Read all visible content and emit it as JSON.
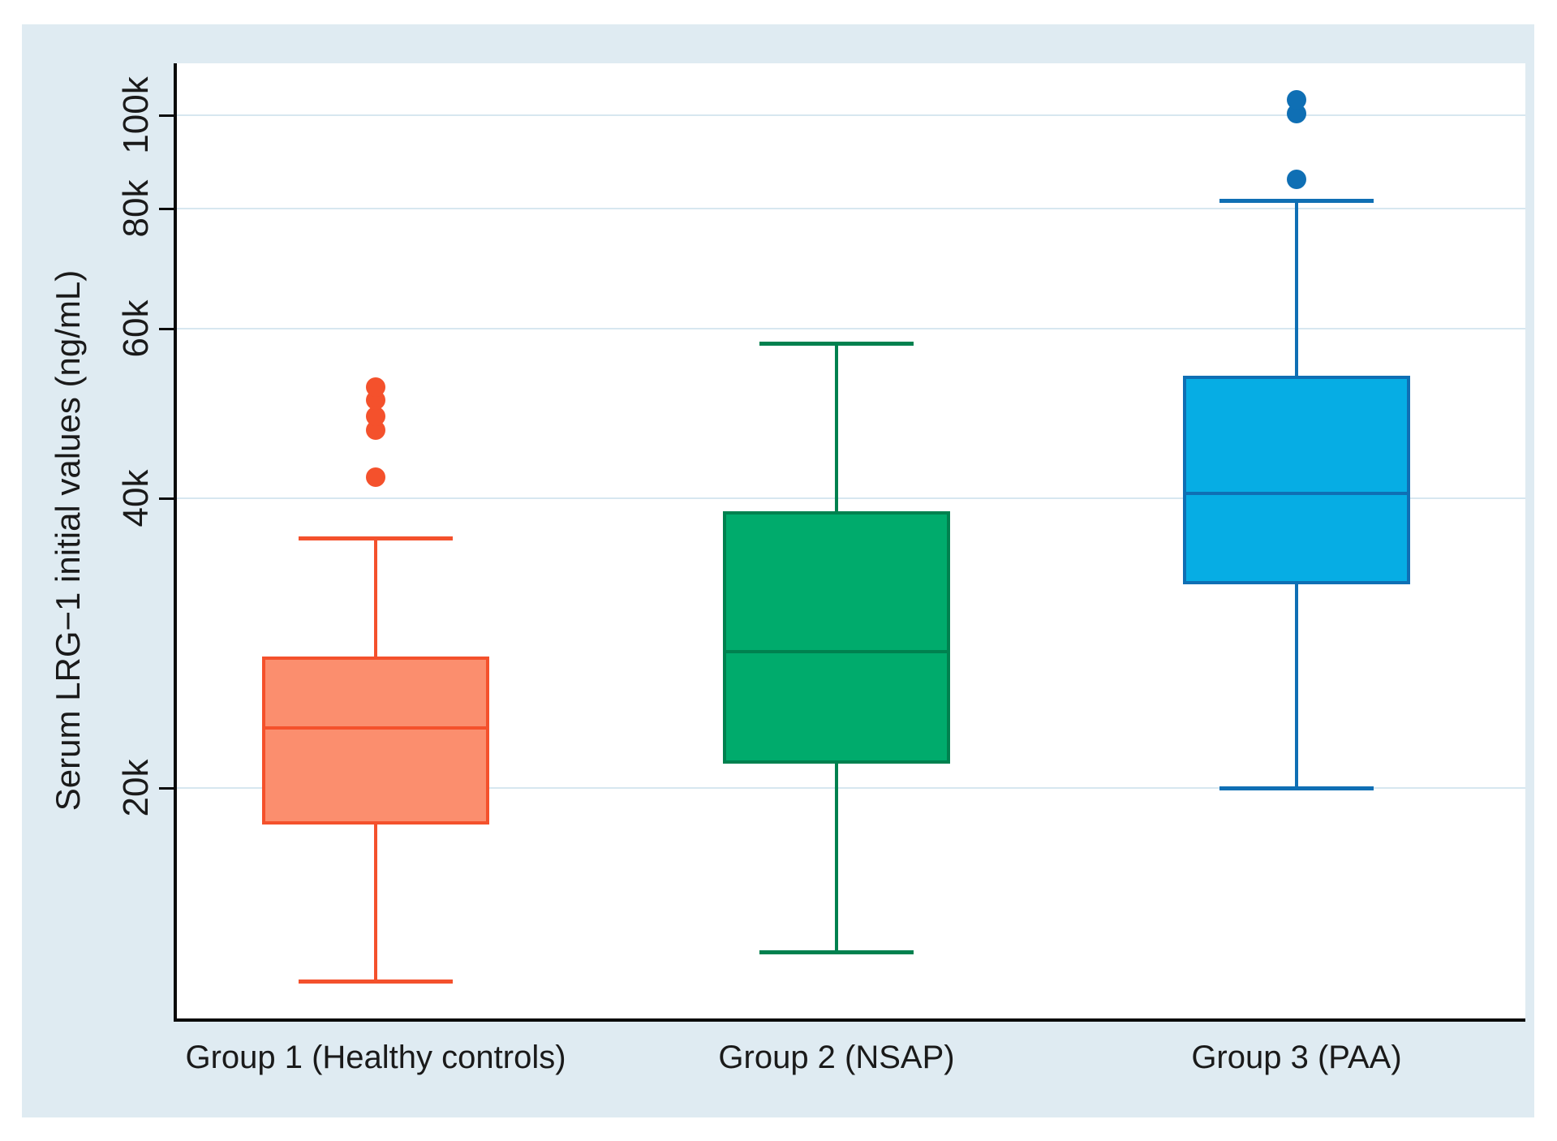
{
  "chart_data": {
    "type": "box",
    "title": "",
    "xlabel": "",
    "ylabel": "Serum LRG−1 initial values (ng/mL)",
    "y_scale": "log",
    "y_unit": "ng/mL",
    "grid": true,
    "legend": false,
    "y_ticks": [
      {
        "value": 20000,
        "label": "20k"
      },
      {
        "value": 40000,
        "label": "40k"
      },
      {
        "value": 60000,
        "label": "60k"
      },
      {
        "value": 80000,
        "label": "80k"
      },
      {
        "value": 100000,
        "label": "100k"
      }
    ],
    "groups": [
      {
        "label": "Group 1 (Healthy controls)",
        "median": 23100,
        "q1": 18400,
        "q3": 27300,
        "whisker_low": 12600,
        "whisker_high": 36400,
        "outliers": [
          42100,
          47100,
          48700,
          50600,
          52200
        ],
        "line_color": "#f4512c",
        "fill_color": "#fb8e6e"
      },
      {
        "label": "Group 2 (NSAP)",
        "median": 27700,
        "q1": 21300,
        "q3": 38600,
        "whisker_low": 13500,
        "whisker_high": 58000,
        "outliers": [],
        "line_color": "#00814f",
        "fill_color": "#00ab6c"
      },
      {
        "label": "Group 3 (PAA)",
        "median": 40500,
        "q1": 32700,
        "q3": 53400,
        "whisker_low": 20000,
        "whisker_high": 81600,
        "outliers": [
          85800,
          100400,
          103700
        ],
        "line_color": "#0f6fb4",
        "fill_color": "#06ade4"
      }
    ]
  },
  "colors": {
    "panel_bg": "#dfebf2",
    "plot_bg": "#ffffff",
    "grid": "#d7e7f0",
    "axis": "#0a0a0a",
    "text": "#1a1a1a"
  }
}
